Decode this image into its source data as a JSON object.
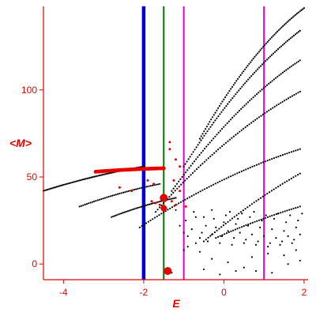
{
  "chart_data": {
    "type": "scatter",
    "title": "",
    "xlabel": "E",
    "ylabel": "<M>",
    "xlim": [
      -4.5,
      2.1
    ],
    "ylim": [
      -9,
      148
    ],
    "xticks": [
      -4,
      -2,
      0,
      2
    ],
    "yticks": [
      0,
      50,
      100
    ],
    "grid": false,
    "colors": {
      "axis": "#e60000",
      "points": "#000000",
      "highlight": "#e60000",
      "line_blue": "#0000dd",
      "line_green": "#007700",
      "line_magenta": "#dd00dd"
    },
    "vertical_lines": [
      {
        "x": -2.0,
        "color": "#0000dd",
        "width": "thick"
      },
      {
        "x": -1.5,
        "color": "#007700",
        "width": "thin"
      },
      {
        "x": -1.0,
        "color": "#dd00dd",
        "width": "thin"
      },
      {
        "x": 1.0,
        "color": "#dd00dd",
        "width": "thin"
      }
    ],
    "series": [
      {
        "x_range": [
          -4.5,
          -2.0
        ],
        "y_range": [
          42,
          56
        ],
        "n": 70,
        "curvature": -0.3,
        "color": "#000000"
      },
      {
        "x_range": [
          -3.6,
          -1.6
        ],
        "y_range": [
          33,
          46
        ],
        "n": 45,
        "curvature": -0.3,
        "color": "#000000"
      },
      {
        "x_range": [
          -2.8,
          -1.2
        ],
        "y_range": [
          27,
          38
        ],
        "n": 40,
        "curvature": -0.3,
        "color": "#000000"
      },
      {
        "x_range": [
          -2.1,
          1.9
        ],
        "y_range": [
          21,
          66
        ],
        "n": 75,
        "curvature": -0.35,
        "color": "#000000"
      },
      {
        "x_range": [
          -1.7,
          1.9
        ],
        "y_range": [
          30,
          99
        ],
        "n": 75,
        "curvature": -0.35,
        "color": "#000000"
      },
      {
        "x_range": [
          -1.3,
          1.9
        ],
        "y_range": [
          42,
          117
        ],
        "n": 75,
        "curvature": -0.35,
        "color": "#000000"
      },
      {
        "x_range": [
          -1.0,
          1.9
        ],
        "y_range": [
          56,
          134
        ],
        "n": 75,
        "curvature": -0.35,
        "color": "#000000"
      },
      {
        "x_range": [
          -0.6,
          2.0
        ],
        "y_range": [
          72,
          147
        ],
        "n": 75,
        "curvature": -0.4,
        "color": "#000000"
      },
      {
        "x_range": [
          -0.5,
          1.9
        ],
        "y_range": [
          13,
          52
        ],
        "n": 45,
        "curvature": -0.2,
        "color": "#000000"
      },
      {
        "x_range": [
          -0.2,
          1.9
        ],
        "y_range": [
          15,
          33
        ],
        "n": 40,
        "curvature": -0.2,
        "color": "#000000"
      }
    ],
    "scatter_points": [
      [
        -1.1,
        22
      ],
      [
        -0.95,
        25
      ],
      [
        -0.8,
        20
      ],
      [
        -0.7,
        27
      ],
      [
        -0.55,
        18
      ],
      [
        -0.45,
        22
      ],
      [
        -0.3,
        17
      ],
      [
        -0.2,
        21
      ],
      [
        -0.05,
        16
      ],
      [
        0.1,
        19
      ],
      [
        0.25,
        15
      ],
      [
        0.4,
        18
      ],
      [
        0.55,
        14
      ],
      [
        0.7,
        17
      ],
      [
        0.85,
        13
      ],
      [
        1.0,
        16
      ],
      [
        1.15,
        12
      ],
      [
        1.3,
        15
      ],
      [
        1.45,
        13
      ],
      [
        1.6,
        16
      ],
      [
        1.75,
        14
      ],
      [
        1.9,
        17
      ],
      [
        -0.6,
        15
      ],
      [
        -0.4,
        13
      ],
      [
        -0.1,
        12
      ],
      [
        0.2,
        11
      ],
      [
        0.5,
        12
      ],
      [
        0.8,
        11
      ],
      [
        1.1,
        10
      ],
      [
        1.4,
        11
      ],
      [
        1.7,
        12
      ],
      [
        -0.9,
        16
      ],
      [
        0.0,
        24
      ],
      [
        0.3,
        23
      ],
      [
        0.6,
        22
      ],
      [
        0.9,
        21
      ],
      [
        1.2,
        20
      ],
      [
        1.5,
        19
      ],
      [
        1.8,
        21
      ],
      [
        -0.75,
        30
      ],
      [
        -0.5,
        27
      ],
      [
        -0.25,
        26
      ],
      [
        0.05,
        28
      ],
      [
        0.35,
        26
      ],
      [
        0.65,
        27
      ],
      [
        0.95,
        25
      ],
      [
        1.25,
        26
      ],
      [
        1.55,
        24
      ],
      [
        1.85,
        25
      ],
      [
        -1.2,
        31
      ],
      [
        -0.3,
        31
      ],
      [
        0.15,
        30
      ],
      [
        0.45,
        29
      ],
      [
        0.75,
        30
      ],
      [
        1.05,
        28
      ],
      [
        1.35,
        29
      ],
      [
        1.65,
        28
      ],
      [
        1.95,
        29
      ],
      [
        -1.0,
        18
      ],
      [
        -0.9,
        10
      ],
      [
        -0.6,
        7
      ],
      [
        -0.3,
        3
      ],
      [
        0.1,
        1
      ],
      [
        0.5,
        -2
      ],
      [
        0.8,
        -4
      ],
      [
        1.2,
        -5
      ],
      [
        1.6,
        0
      ],
      [
        1.9,
        2
      ],
      [
        -0.5,
        -3
      ],
      [
        -0.1,
        -6
      ],
      [
        0.3,
        -4
      ],
      [
        0.7,
        4
      ],
      [
        1.1,
        6
      ],
      [
        1.5,
        5
      ],
      [
        1.8,
        8
      ],
      [
        -1.3,
        -5
      ],
      [
        -1.0,
        8
      ],
      [
        -0.7,
        12
      ]
    ],
    "highlight_blobs": [
      {
        "x_range": [
          -3.2,
          -1.5
        ],
        "y_range": [
          53,
          55
        ],
        "n": 55,
        "curvature": -0.5,
        "r": 2.4
      }
    ],
    "highlight_points": [
      [
        -1.5,
        38,
        5
      ],
      [
        -1.5,
        32,
        4
      ],
      [
        -1.4,
        -4,
        5
      ],
      [
        -2.6,
        44,
        1.5
      ],
      [
        -2.3,
        42,
        1.5
      ],
      [
        -1.8,
        36,
        1.5
      ],
      [
        -1.7,
        35,
        1.5
      ],
      [
        -1.6,
        34,
        1.5
      ],
      [
        -1.3,
        36,
        1.5
      ],
      [
        -1.2,
        34,
        1.5
      ],
      [
        -1.35,
        70,
        1.5
      ],
      [
        -1.35,
        66,
        1.5
      ],
      [
        -1.2,
        60,
        1.5
      ],
      [
        -1.1,
        56,
        1.5
      ],
      [
        -1.25,
        48,
        1.5
      ],
      [
        -0.95,
        33,
        1.5
      ],
      [
        -1.9,
        48,
        1.5
      ],
      [
        -1.75,
        46,
        1.5
      ],
      [
        -1.1,
        42,
        1.5
      ]
    ]
  }
}
